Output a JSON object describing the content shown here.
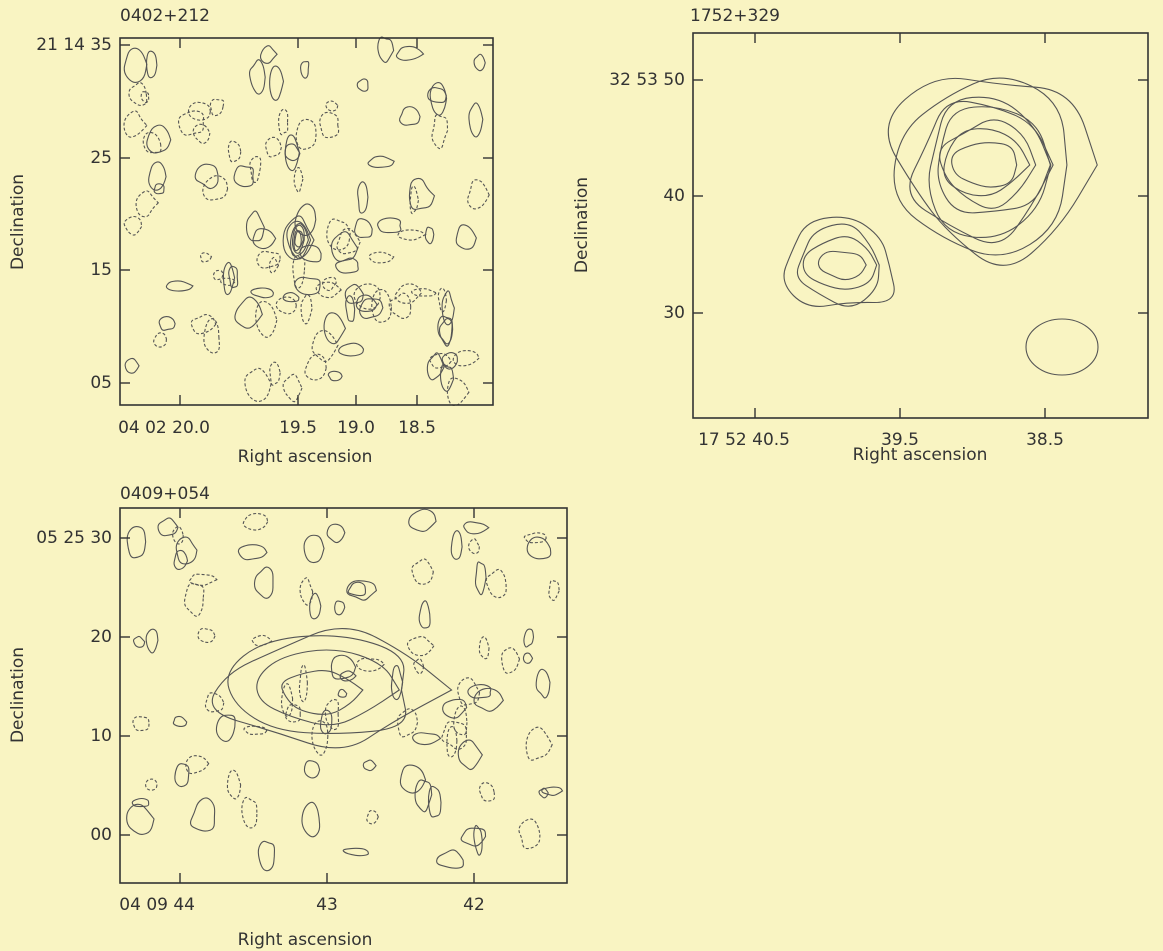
{
  "panels": [
    {
      "title": "0402+212",
      "x_label": "Right ascension",
      "y_label": "Declination",
      "x_ticks": [
        "04 02 20.0",
        "19.5",
        "19.0",
        "18.5"
      ],
      "y_ticks": [
        "21 14 35",
        "25",
        "15",
        "05"
      ]
    },
    {
      "title": "1752+329",
      "x_label": "Right ascension",
      "y_label": "Declination",
      "x_ticks": [
        "17  52  40.5",
        "39.5",
        "38.5"
      ],
      "y_ticks": [
        "32 53 50",
        "40",
        "30"
      ]
    },
    {
      "title": "0409+054",
      "x_label": "Right ascension",
      "y_label": "Declination",
      "x_ticks": [
        "04 09 44",
        "43",
        "42"
      ],
      "y_ticks": [
        "05 25 30",
        "20",
        "10",
        "00"
      ]
    }
  ]
}
